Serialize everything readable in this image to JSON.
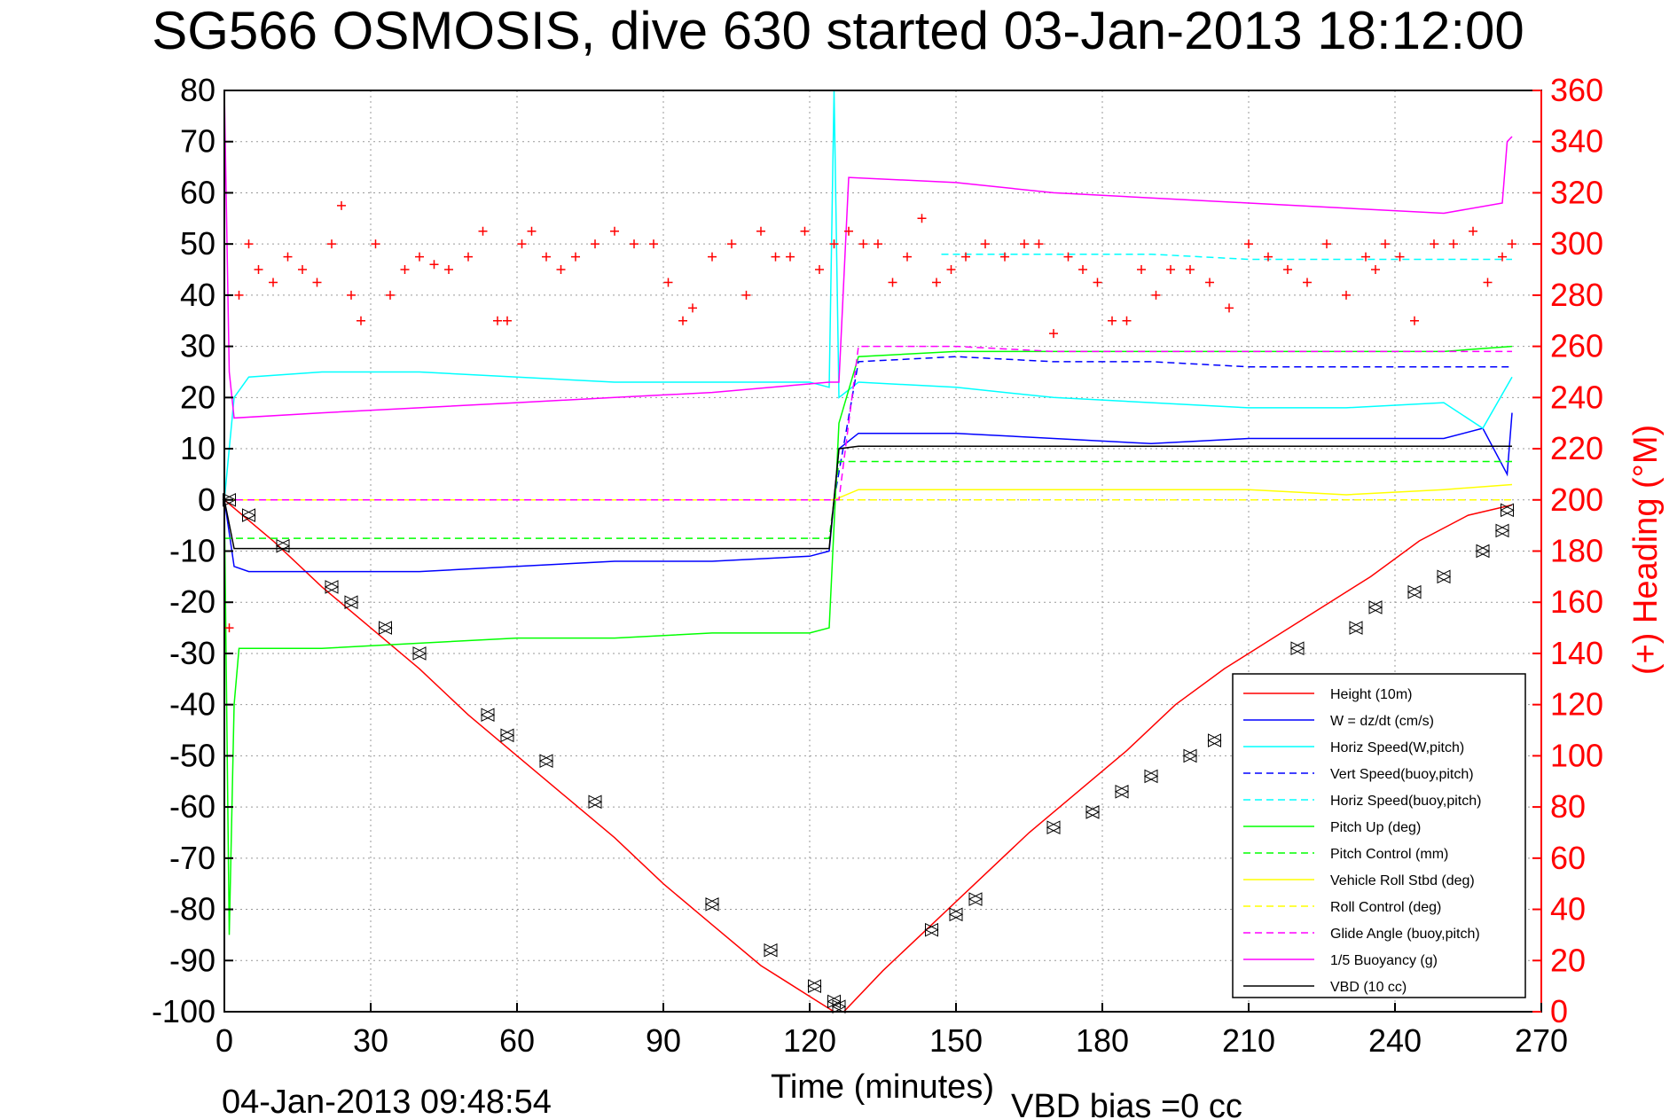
{
  "chart_data": {
    "type": "line",
    "title": "SG566 OSMOSIS, dive 630 started 03-Jan-2013 18:12:00",
    "xlabel": "Time (minutes)",
    "ylabel_right": "(+) Heading (°M)",
    "xlim": [
      0,
      270
    ],
    "ylim_left": [
      -100,
      80
    ],
    "ylim_right": [
      0,
      360
    ],
    "x_ticks": [
      "0",
      "30",
      "60",
      "90",
      "120",
      "150",
      "180",
      "210",
      "240",
      "270"
    ],
    "y_ticks_left": [
      "80",
      "70",
      "60",
      "50",
      "40",
      "30",
      "20",
      "10",
      "0",
      "-10",
      "-20",
      "-30",
      "-40",
      "-50",
      "-60",
      "-70",
      "-80",
      "-90",
      "-100"
    ],
    "y_ticks_right": [
      "360",
      "340",
      "320",
      "300",
      "280",
      "260",
      "240",
      "220",
      "200",
      "180",
      "160",
      "140",
      "120",
      "100",
      "80",
      "60",
      "40",
      "20",
      "0"
    ],
    "grid": true,
    "legend_position": "bottom-right",
    "footer_left": "04-Jan-2013 09:48:54",
    "footer_right": "VBD bias =0 cc",
    "series": [
      {
        "name": "Height (10m)",
        "color": "#ff0000",
        "style": "solid",
        "x": [
          0,
          10,
          20,
          30,
          40,
          50,
          60,
          70,
          80,
          90,
          100,
          110,
          120,
          125,
          127,
          135,
          145,
          155,
          165,
          175,
          185,
          195,
          205,
          215,
          225,
          235,
          245,
          255,
          264
        ],
        "y": [
          0,
          -8,
          -17,
          -25,
          -33,
          -42,
          -50,
          -58,
          -66,
          -75,
          -83,
          -91,
          -97,
          -100,
          -100,
          -92,
          -83,
          -74,
          -65,
          -57,
          -49,
          -40,
          -33,
          -27,
          -21,
          -15,
          -8,
          -3,
          -1
        ]
      },
      {
        "name": "W = dz/dt (cm/s)",
        "color": "#0000ff",
        "style": "solid",
        "x": [
          0,
          2,
          5,
          20,
          40,
          60,
          80,
          100,
          120,
          124,
          126,
          130,
          150,
          170,
          190,
          210,
          230,
          250,
          258,
          263,
          264
        ],
        "y": [
          0,
          -13,
          -14,
          -14,
          -14,
          -13,
          -12,
          -12,
          -11,
          -10,
          10,
          13,
          13,
          12,
          11,
          12,
          12,
          12,
          14,
          5,
          17
        ]
      },
      {
        "name": "Horiz Speed(W,pitch)",
        "color": "#00ffff",
        "style": "solid",
        "x": [
          0,
          2,
          5,
          20,
          40,
          60,
          80,
          100,
          120,
          124,
          125,
          126,
          130,
          150,
          170,
          190,
          210,
          230,
          250,
          258,
          264
        ],
        "y": [
          0,
          20,
          24,
          25,
          25,
          24,
          23,
          23,
          23,
          22,
          80,
          20,
          23,
          22,
          20,
          19,
          18,
          18,
          19,
          14,
          24
        ]
      },
      {
        "name": "Vert Speed(buoy,pitch)",
        "color": "#0000ff",
        "style": "dashed",
        "x": [
          125,
          130,
          150,
          170,
          190,
          210,
          230,
          250,
          264
        ],
        "y": [
          0,
          27,
          28,
          27,
          27,
          26,
          26,
          26,
          26
        ]
      },
      {
        "name": "Horiz Speed(buoy,pitch)",
        "color": "#00ffff",
        "style": "dashed",
        "x": [
          147,
          150,
          170,
          190,
          210,
          230,
          250,
          264
        ],
        "y": [
          48,
          48,
          48,
          48,
          47,
          47,
          47,
          47
        ]
      },
      {
        "name": "Pitch Up (deg)",
        "color": "#00ff00",
        "style": "solid",
        "x": [
          0,
          1,
          2,
          3,
          5,
          20,
          40,
          60,
          80,
          100,
          120,
          124,
          126,
          130,
          150,
          170,
          190,
          210,
          230,
          250,
          264
        ],
        "y": [
          0,
          -85,
          -40,
          -29,
          -29,
          -29,
          -28,
          -27,
          -27,
          -26,
          -26,
          -25,
          15,
          28,
          29,
          29,
          29,
          29,
          29,
          29,
          30
        ]
      },
      {
        "name": "Pitch Control (mm)",
        "color": "#00ff00",
        "style": "dashed",
        "x": [
          0,
          2,
          124,
          126,
          264
        ],
        "y": [
          -7.5,
          -7.5,
          -7.5,
          7.5,
          7.5
        ]
      },
      {
        "name": "Vehicle Roll Stbd (deg)",
        "color": "#ffff00",
        "style": "solid",
        "x": [
          0,
          5,
          40,
          80,
          120,
          125,
          130,
          150,
          170,
          190,
          210,
          230,
          250,
          264
        ],
        "y": [
          0,
          0,
          0,
          0,
          0,
          0,
          2,
          2,
          2,
          2,
          2,
          1,
          2,
          3
        ]
      },
      {
        "name": "Roll Control (deg)",
        "color": "#ffff00",
        "style": "dashed",
        "x": [
          0,
          264
        ],
        "y": [
          0,
          0
        ]
      },
      {
        "name": "Glide Angle (buoy,pitch)",
        "color": "#ff00ff",
        "style": "dashed",
        "x": [
          0,
          124,
          126,
          130,
          150,
          170,
          190,
          210,
          230,
          250,
          264
        ],
        "y": [
          0,
          0,
          0,
          30,
          30,
          29,
          29,
          29,
          29,
          29,
          29
        ]
      },
      {
        "name": "1/5 Buoyancy (g)",
        "color": "#ff00ff",
        "style": "solid",
        "x": [
          0,
          1,
          2,
          20,
          40,
          60,
          80,
          100,
          124,
          126,
          128,
          150,
          170,
          190,
          210,
          230,
          250,
          262,
          263,
          264
        ],
        "y": [
          80,
          25,
          16,
          17,
          18,
          19,
          20,
          21,
          23,
          23,
          63,
          62,
          60,
          59,
          58,
          57,
          56,
          58,
          70,
          71
        ]
      },
      {
        "name": "VBD (10 cc)",
        "color": "#000000",
        "style": "solid",
        "x": [
          0,
          2,
          124,
          126,
          130,
          264
        ],
        "y": [
          0,
          -9.5,
          -9.5,
          10,
          10.5,
          10.5
        ]
      }
    ],
    "heading_series": {
      "name": "(+) Heading",
      "color": "#ff0000",
      "marker": "+",
      "axis": "right",
      "x": [
        1,
        3,
        5,
        7,
        10,
        13,
        16,
        19,
        22,
        24,
        26,
        28,
        31,
        34,
        37,
        40,
        43,
        46,
        50,
        53,
        56,
        58,
        61,
        63,
        66,
        69,
        72,
        76,
        80,
        84,
        88,
        91,
        94,
        96,
        100,
        104,
        107,
        110,
        113,
        116,
        119,
        122,
        125,
        128,
        131,
        134,
        137,
        140,
        143,
        146,
        149,
        152,
        156,
        160,
        164,
        167,
        170,
        173,
        176,
        179,
        182,
        185,
        188,
        191,
        194,
        198,
        202,
        206,
        210,
        214,
        218,
        222,
        226,
        230,
        234,
        236,
        238,
        241,
        244,
        248,
        252,
        256,
        259,
        262,
        264
      ],
      "y": [
        150,
        280,
        300,
        290,
        285,
        295,
        290,
        285,
        300,
        315,
        280,
        270,
        300,
        280,
        290,
        295,
        292,
        290,
        295,
        305,
        270,
        270,
        300,
        305,
        295,
        290,
        295,
        300,
        305,
        300,
        300,
        285,
        270,
        275,
        295,
        300,
        280,
        305,
        295,
        295,
        305,
        290,
        300,
        305,
        300,
        300,
        285,
        295,
        310,
        285,
        290,
        295,
        300,
        295,
        300,
        300,
        265,
        295,
        290,
        285,
        270,
        270,
        290,
        280,
        290,
        290,
        285,
        275,
        300,
        295,
        290,
        285,
        300,
        280,
        295,
        290,
        300,
        295,
        270,
        300,
        300,
        305,
        285,
        295,
        300
      ]
    },
    "dive_markers": {
      "x": [
        1,
        5,
        12,
        22,
        26,
        33,
        40,
        54,
        58,
        66,
        76,
        100,
        112,
        121,
        125,
        126,
        145,
        150,
        154,
        170,
        178,
        184,
        190,
        198,
        203,
        214,
        220,
        232,
        236,
        244,
        250,
        258,
        262,
        263
      ],
      "y": [
        0,
        -3,
        -9,
        -17,
        -20,
        -25,
        -30,
        -42,
        -46,
        -51,
        -59,
        -79,
        -88,
        -95,
        -98,
        -99,
        -84,
        -81,
        -78,
        -64,
        -61,
        -57,
        -54,
        -50,
        -47,
        -40,
        -29,
        -25,
        -21,
        -18,
        -15,
        -10,
        -6,
        -2
      ]
    }
  },
  "legend": {
    "items": [
      {
        "label": "Height (10m)",
        "color": "#ff0000",
        "dashed": false
      },
      {
        "label": "W = dz/dt (cm/s)",
        "color": "#0000ff",
        "dashed": false
      },
      {
        "label": "Horiz Speed(W,pitch)",
        "color": "#00ffff",
        "dashed": false
      },
      {
        "label": "Vert Speed(buoy,pitch)",
        "color": "#0000ff",
        "dashed": true
      },
      {
        "label": "Horiz Speed(buoy,pitch)",
        "color": "#00ffff",
        "dashed": true
      },
      {
        "label": "Pitch Up (deg)",
        "color": "#00ff00",
        "dashed": false
      },
      {
        "label": "Pitch Control (mm)",
        "color": "#00ff00",
        "dashed": true
      },
      {
        "label": "Vehicle Roll Stbd (deg)",
        "color": "#ffff00",
        "dashed": false
      },
      {
        "label": "Roll Control (deg)",
        "color": "#ffff00",
        "dashed": true
      },
      {
        "label": "Glide Angle (buoy,pitch)",
        "color": "#ff00ff",
        "dashed": true
      },
      {
        "label": "1/5 Buoyancy (g)",
        "color": "#ff00ff",
        "dashed": false
      },
      {
        "label": "VBD (10 cc)",
        "color": "#000000",
        "dashed": false
      }
    ]
  }
}
